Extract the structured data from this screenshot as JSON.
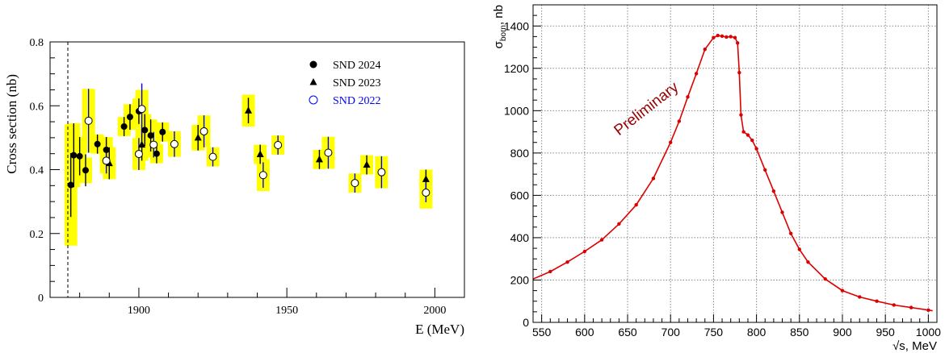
{
  "chart_data": [
    {
      "type": "scatter",
      "xlabel": "E (MeV)",
      "ylabel": "Cross section (nb)",
      "xlim": [
        1870,
        2010
      ],
      "ylim": [
        0,
        0.8
      ],
      "xticks": [
        1900,
        1950,
        2000
      ],
      "yticks": [
        0,
        0.2,
        0.4,
        0.6,
        0.8
      ],
      "threshold_line_x": 1876,
      "legend_position": "top-right",
      "series": [
        {
          "name": "SND 2024",
          "marker": "filled-circle",
          "color": "#000000",
          "points": [
            {
              "x": 1877,
              "y": 0.352,
              "err": 0.1,
              "sys": 0.19
            },
            {
              "x": 1878,
              "y": 0.445,
              "err": 0.1,
              "sys": 0.1
            },
            {
              "x": 1880,
              "y": 0.442,
              "err": 0.06,
              "sys": 0.06
            },
            {
              "x": 1882,
              "y": 0.398,
              "err": 0.05,
              "sys": 0.04
            },
            {
              "x": 1886,
              "y": 0.48,
              "err": 0.03,
              "sys": 0.03
            },
            {
              "x": 1889,
              "y": 0.462,
              "err": 0.04,
              "sys": 0.04
            },
            {
              "x": 1895,
              "y": 0.535,
              "err": 0.03,
              "sys": 0.03
            },
            {
              "x": 1897,
              "y": 0.565,
              "err": 0.04,
              "sys": 0.04
            },
            {
              "x": 1900,
              "y": 0.583,
              "err": 0.04,
              "sys": 0.04
            },
            {
              "x": 1902,
              "y": 0.524,
              "err": 0.05,
              "sys": 0.05
            },
            {
              "x": 1904,
              "y": 0.507,
              "err": 0.05,
              "sys": 0.05
            },
            {
              "x": 1906,
              "y": 0.45,
              "err": 0.03,
              "sys": 0.03
            },
            {
              "x": 1908,
              "y": 0.518,
              "err": 0.03,
              "sys": 0.03
            }
          ]
        },
        {
          "name": "SND 2023",
          "marker": "filled-triangle",
          "color": "#000000",
          "points": [
            {
              "x": 1890,
              "y": 0.42,
              "err": 0.05,
              "sys": 0.05
            },
            {
              "x": 1901,
              "y": 0.478,
              "err": 0.05,
              "sys": 0.05
            },
            {
              "x": 1920,
              "y": 0.5,
              "err": 0.04,
              "sys": 0.04
            },
            {
              "x": 1937,
              "y": 0.585,
              "err": 0.04,
              "sys": 0.05
            },
            {
              "x": 1941,
              "y": 0.448,
              "err": 0.03,
              "sys": 0.03
            },
            {
              "x": 1961,
              "y": 0.432,
              "err": 0.03,
              "sys": 0.03
            },
            {
              "x": 1977,
              "y": 0.415,
              "err": 0.03,
              "sys": 0.03
            },
            {
              "x": 1997,
              "y": 0.37,
              "err": 0.03,
              "sys": 0.03
            }
          ]
        },
        {
          "name": "SND 2022",
          "marker": "open-circle",
          "color": "#0000ff",
          "points": [
            {
              "x": 1883,
              "y": 0.553,
              "err": 0.1,
              "sys": 0.1
            },
            {
              "x": 1889,
              "y": 0.428,
              "err": 0.04,
              "sys": 0.04
            },
            {
              "x": 1900,
              "y": 0.449,
              "err": 0.05,
              "sys": 0.05
            },
            {
              "x": 1901,
              "y": 0.59,
              "err": 0.08,
              "sys": 0.06
            },
            {
              "x": 1905,
              "y": 0.478,
              "err": 0.04,
              "sys": 0.04
            },
            {
              "x": 1912,
              "y": 0.48,
              "err": 0.04,
              "sys": 0.04
            },
            {
              "x": 1922,
              "y": 0.52,
              "err": 0.05,
              "sys": 0.05
            },
            {
              "x": 1925,
              "y": 0.44,
              "err": 0.03,
              "sys": 0.03
            },
            {
              "x": 1942,
              "y": 0.383,
              "err": 0.04,
              "sys": 0.05
            },
            {
              "x": 1947,
              "y": 0.477,
              "err": 0.03,
              "sys": 0.03
            },
            {
              "x": 1964,
              "y": 0.453,
              "err": 0.05,
              "sys": 0.05
            },
            {
              "x": 1973,
              "y": 0.358,
              "err": 0.03,
              "sys": 0.03
            },
            {
              "x": 1982,
              "y": 0.392,
              "err": 0.05,
              "sys": 0.05
            },
            {
              "x": 1997,
              "y": 0.328,
              "err": 0.03,
              "sys": 0.05
            }
          ]
        }
      ]
    },
    {
      "type": "line",
      "ylabel_main": "σ",
      "ylabel_sub": "born",
      "ylabel_unit": ", nb",
      "xlabel": "√s, MeV",
      "xlim": [
        540,
        1010
      ],
      "ylim": [
        0,
        1500
      ],
      "xticks": [
        550,
        600,
        650,
        700,
        750,
        800,
        850,
        900,
        950,
        1000
      ],
      "yticks": [
        0,
        200,
        400,
        600,
        800,
        1000,
        1200,
        1400
      ],
      "grid": true,
      "annotation": "Preliminary",
      "color": "#dd0000",
      "annotation_color": "#990000",
      "x": [
        540,
        560,
        580,
        600,
        620,
        640,
        660,
        680,
        700,
        710,
        720,
        730,
        740,
        750,
        755,
        760,
        765,
        770,
        775,
        778,
        780,
        782,
        785,
        790,
        795,
        800,
        810,
        820,
        830,
        840,
        850,
        860,
        880,
        900,
        920,
        940,
        960,
        980,
        1000,
        1005
      ],
      "y": [
        205,
        240,
        285,
        335,
        390,
        465,
        555,
        680,
        850,
        950,
        1065,
        1175,
        1290,
        1345,
        1355,
        1352,
        1348,
        1350,
        1345,
        1320,
        1180,
        980,
        900,
        885,
        860,
        820,
        720,
        620,
        520,
        420,
        345,
        285,
        205,
        150,
        120,
        100,
        82,
        70,
        58,
        55
      ]
    }
  ]
}
